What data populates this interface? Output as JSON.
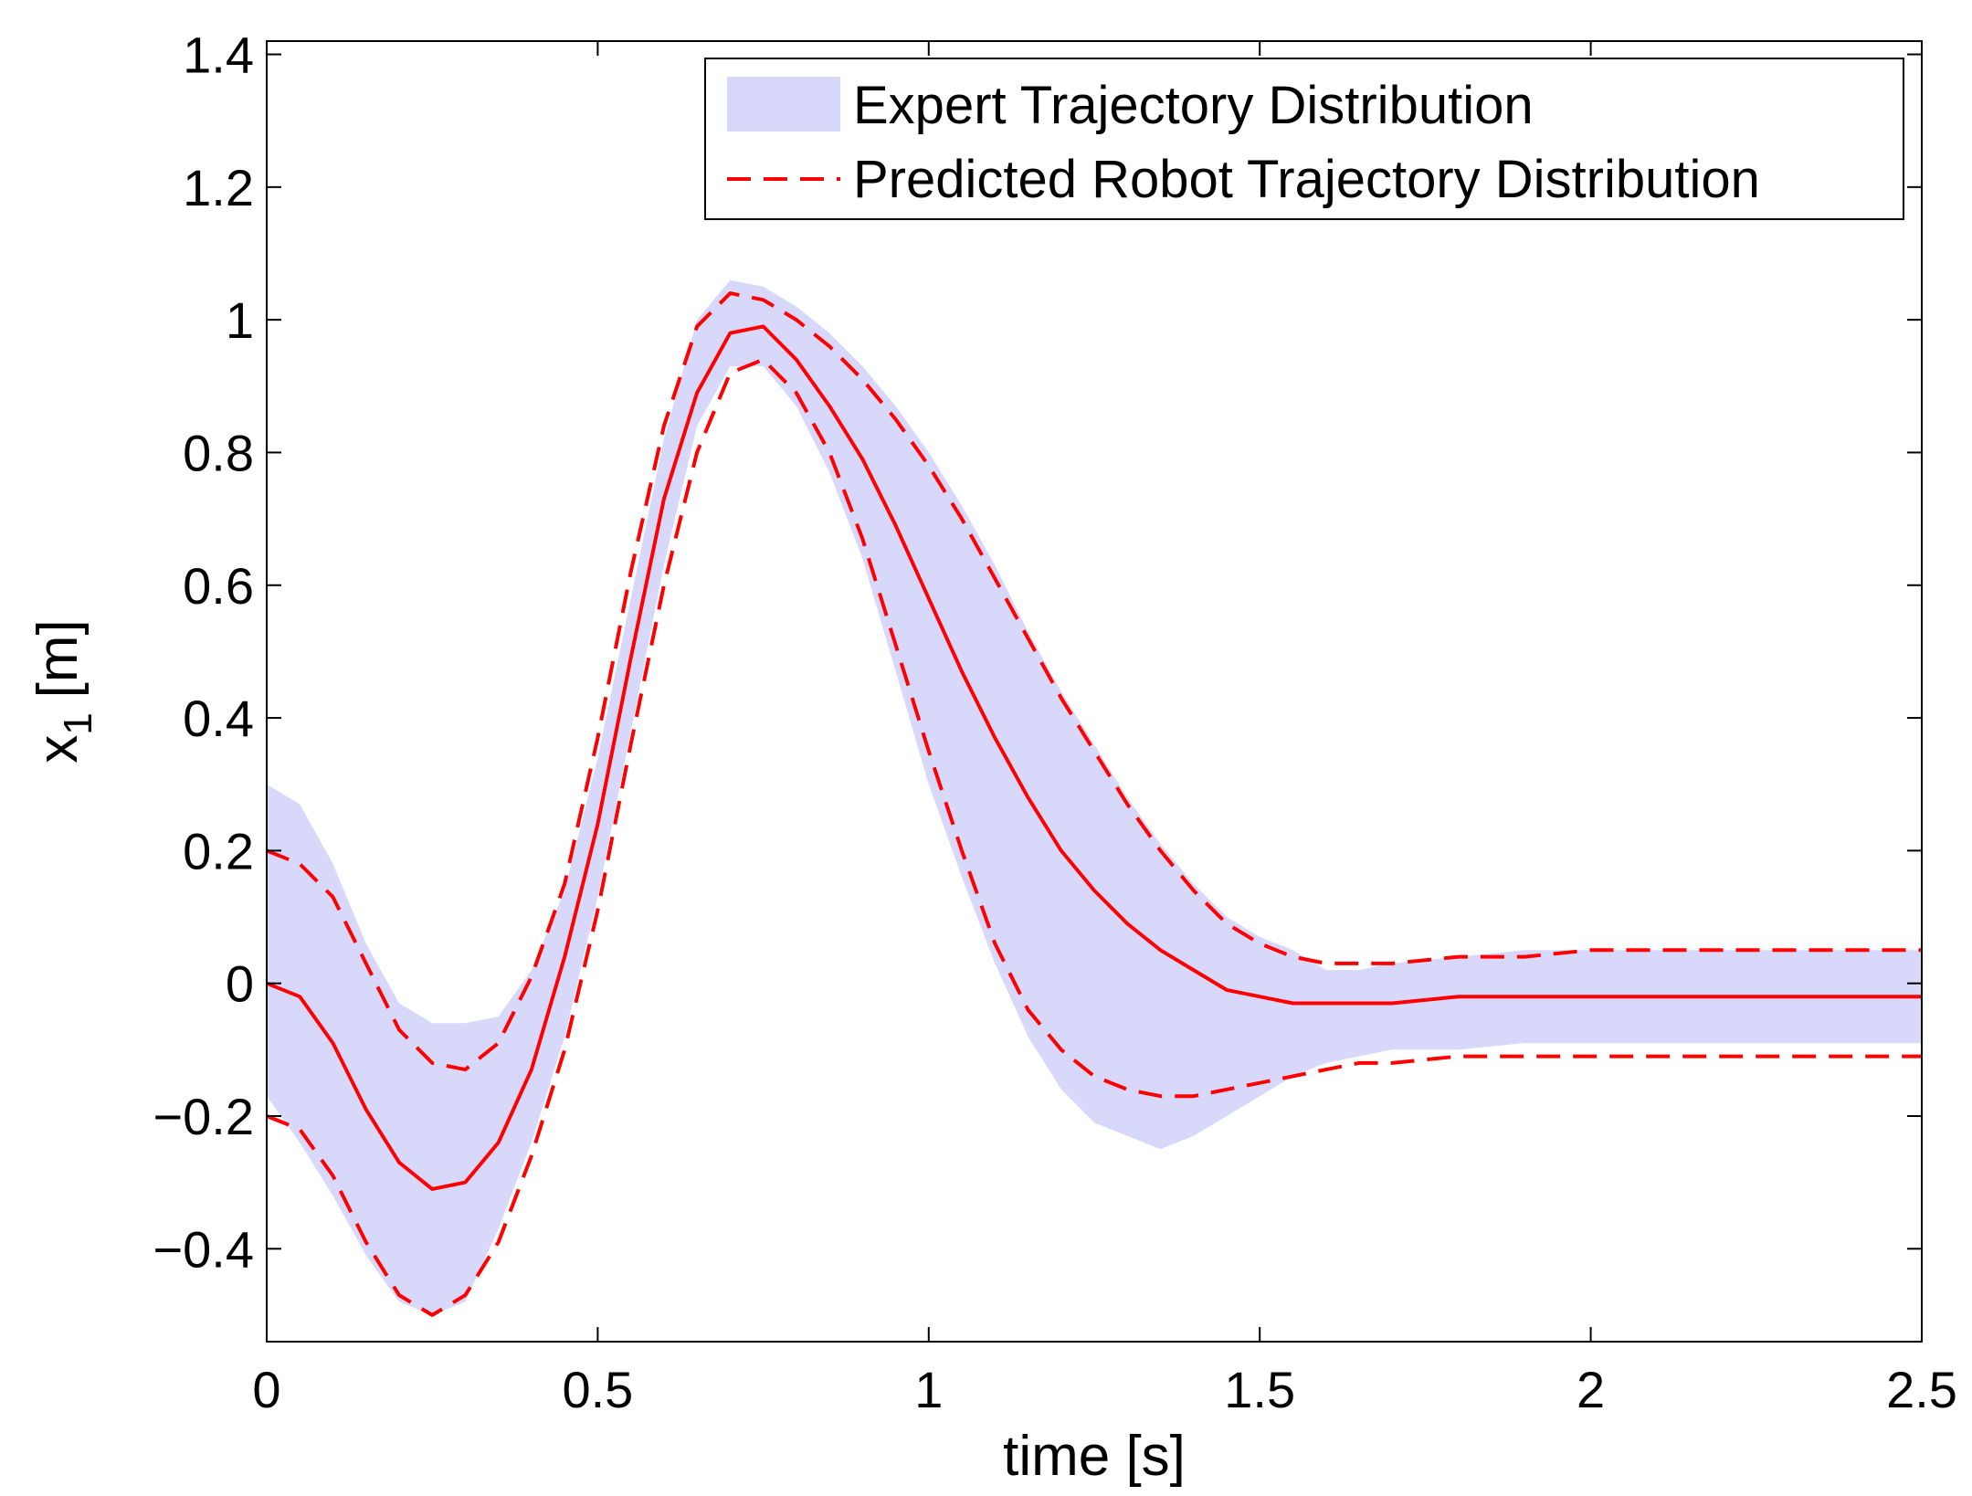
{
  "chart_data": {
    "type": "line",
    "title": "",
    "xlabel": "time [s]",
    "ylabel_main": "x",
    "ylabel_sub": "1",
    "ylabel_unit": "[m]",
    "xlim": [
      0,
      2.5
    ],
    "ylim": [
      -0.54,
      1.42
    ],
    "xticks": [
      0,
      0.5,
      1,
      1.5,
      2,
      2.5
    ],
    "xtick_labels": [
      "0",
      "0.5",
      "1",
      "1.5",
      "2",
      "2.5"
    ],
    "yticks": [
      -0.4,
      -0.2,
      0,
      0.2,
      0.4,
      0.6,
      0.8,
      1,
      1.2,
      1.4
    ],
    "ytick_labels": [
      "−0.4",
      "−0.2",
      "0",
      "0.2",
      "0.4",
      "0.6",
      "0.8",
      "1",
      "1.2",
      "1.4"
    ],
    "grid": false,
    "legend_position": "top-right",
    "legend": [
      {
        "label": "Expert Trajectory Distribution",
        "style": "band"
      },
      {
        "label": "Predicted Robot Trajectory Distribution",
        "style": "dashed"
      }
    ],
    "colors": {
      "band": "#d8d8fa",
      "line": "#ff0000",
      "axis": "#000000"
    },
    "x": [
      0,
      0.05,
      0.1,
      0.15,
      0.2,
      0.25,
      0.3,
      0.35,
      0.4,
      0.45,
      0.5,
      0.55,
      0.6,
      0.65,
      0.7,
      0.75,
      0.8,
      0.85,
      0.9,
      0.95,
      1.0,
      1.05,
      1.1,
      1.15,
      1.2,
      1.25,
      1.3,
      1.35,
      1.4,
      1.45,
      1.5,
      1.55,
      1.6,
      1.65,
      1.7,
      1.8,
      1.9,
      2.0,
      2.1,
      2.2,
      2.3,
      2.4,
      2.5
    ],
    "series": [
      {
        "name": "Expert Trajectory Distribution",
        "kind": "band",
        "upper": [
          0.3,
          0.27,
          0.18,
          0.06,
          -0.03,
          -0.06,
          -0.06,
          -0.05,
          0.02,
          0.14,
          0.34,
          0.58,
          0.82,
          1.0,
          1.06,
          1.05,
          1.02,
          0.98,
          0.93,
          0.87,
          0.8,
          0.72,
          0.63,
          0.53,
          0.44,
          0.36,
          0.28,
          0.21,
          0.15,
          0.1,
          0.07,
          0.05,
          0.02,
          0.02,
          0.03,
          0.04,
          0.05,
          0.05,
          0.05,
          0.05,
          0.05,
          0.05,
          0.05
        ],
        "lower": [
          -0.17,
          -0.24,
          -0.32,
          -0.41,
          -0.48,
          -0.5,
          -0.48,
          -0.37,
          -0.24,
          -0.08,
          0.13,
          0.38,
          0.63,
          0.84,
          0.93,
          0.93,
          0.87,
          0.77,
          0.64,
          0.47,
          0.3,
          0.16,
          0.03,
          -0.08,
          -0.16,
          -0.21,
          -0.23,
          -0.25,
          -0.23,
          -0.2,
          -0.17,
          -0.14,
          -0.12,
          -0.11,
          -0.1,
          -0.1,
          -0.09,
          -0.09,
          -0.09,
          -0.09,
          -0.09,
          -0.09,
          -0.09
        ]
      },
      {
        "name": "Predicted Robot Trajectory Distribution",
        "kind": "dashed-bounds",
        "upper": [
          0.2,
          0.18,
          0.13,
          0.03,
          -0.07,
          -0.12,
          -0.13,
          -0.09,
          0.01,
          0.15,
          0.37,
          0.62,
          0.84,
          0.99,
          1.04,
          1.03,
          1.0,
          0.96,
          0.91,
          0.85,
          0.78,
          0.7,
          0.61,
          0.52,
          0.43,
          0.35,
          0.27,
          0.2,
          0.14,
          0.09,
          0.06,
          0.04,
          0.03,
          0.03,
          0.03,
          0.04,
          0.04,
          0.05,
          0.05,
          0.05,
          0.05,
          0.05,
          0.05
        ],
        "lower": [
          -0.2,
          -0.22,
          -0.29,
          -0.39,
          -0.47,
          -0.5,
          -0.47,
          -0.39,
          -0.26,
          -0.1,
          0.11,
          0.36,
          0.6,
          0.8,
          0.92,
          0.94,
          0.89,
          0.8,
          0.67,
          0.51,
          0.35,
          0.2,
          0.06,
          -0.04,
          -0.1,
          -0.14,
          -0.16,
          -0.17,
          -0.17,
          -0.16,
          -0.15,
          -0.14,
          -0.13,
          -0.12,
          -0.12,
          -0.11,
          -0.11,
          -0.11,
          -0.11,
          -0.11,
          -0.11,
          -0.11,
          -0.11
        ]
      },
      {
        "name": "",
        "kind": "mean",
        "values": [
          0.0,
          -0.02,
          -0.09,
          -0.19,
          -0.27,
          -0.31,
          -0.3,
          -0.24,
          -0.13,
          0.04,
          0.24,
          0.49,
          0.73,
          0.89,
          0.98,
          0.99,
          0.94,
          0.87,
          0.79,
          0.69,
          0.58,
          0.47,
          0.37,
          0.28,
          0.2,
          0.14,
          0.09,
          0.05,
          0.02,
          -0.01,
          -0.02,
          -0.03,
          -0.03,
          -0.03,
          -0.03,
          -0.02,
          -0.02,
          -0.02,
          -0.02,
          -0.02,
          -0.02,
          -0.02,
          -0.02
        ]
      }
    ]
  }
}
